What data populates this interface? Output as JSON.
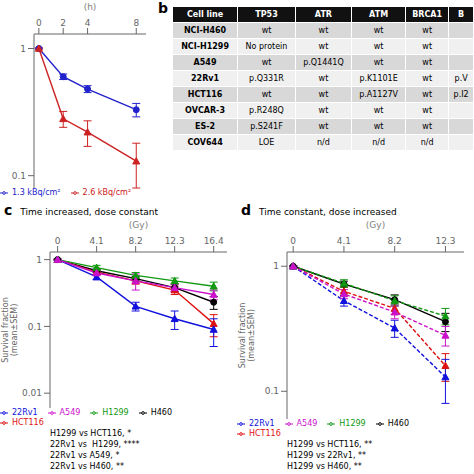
{
  "chart_data": [
    {
      "type": "line",
      "x": [
        0,
        2,
        4,
        8
      ],
      "xlabel": "(h)",
      "xlim": [
        -0.4,
        8.8
      ],
      "xticks": [
        0,
        2,
        4,
        8
      ],
      "ylim": [
        0.08,
        1.3
      ],
      "yticks": [
        0.1,
        1
      ],
      "log": "y",
      "legend": "lower left",
      "series": [
        {
          "name": "1.3 kBq/cm²",
          "color": "#2222cc",
          "marker": "circle",
          "line_style": "solid",
          "values": [
            1.0,
            0.6,
            0.48,
            0.33
          ],
          "errors": [
            0.01,
            0.03,
            0.03,
            0.04
          ]
        },
        {
          "name": "2.6 kBq/cm²",
          "color": "#cc2222",
          "marker": "triangle",
          "line_style": "solid",
          "values": [
            1.0,
            0.28,
            0.22,
            0.13
          ],
          "errors": [
            0.01,
            0.04,
            0.05,
            0.05
          ]
        }
      ]
    },
    {
      "type": "table",
      "annotations": [
        "b"
      ],
      "columns": [
        "Cell line",
        "TP53",
        "ATR",
        "ATM",
        "BRCA1",
        "B"
      ],
      "rows": [
        [
          "NCI-H460",
          "wt",
          "wt",
          "wt",
          "wt",
          null
        ],
        [
          "NCI-H1299",
          "No protein",
          "wt",
          "wt",
          "wt",
          null
        ],
        [
          "A549",
          "wt",
          "p.Q1441Q",
          "wt",
          "wt",
          null
        ],
        [
          "22Rv1",
          "p.Q331R",
          "wt",
          "p.K1101E",
          "wt",
          "p.V"
        ],
        [
          "HCT116",
          "wt",
          "wt",
          "p.A1127V",
          "wt",
          "p.I2"
        ],
        [
          "OVCAR-3",
          "p.R248Q",
          "wt",
          "wt",
          "wt",
          null
        ],
        [
          "ES-2",
          "p.S241F",
          "wt",
          "wt",
          "wt",
          null
        ],
        [
          "COV644",
          "LOE",
          "n/d",
          "n/d",
          "n/d",
          null
        ]
      ]
    },
    {
      "type": "line",
      "title": "Time increased, dose constant",
      "annotations": [
        "c",
        "H1299 vs HCT116, *",
        "22Rv1 vs  H1299, ****",
        "22Rv1 vs A549, *",
        "22Rv1 vs H460, **"
      ],
      "x": [
        0,
        4.1,
        8.2,
        12.3,
        16.4
      ],
      "xlabel": "(Gy)",
      "ylabel": "Survival fraction\n(mean±SEM)",
      "xlim": [
        -0.8,
        17.8
      ],
      "xticks": [
        0,
        4.1,
        8.2,
        12.3,
        16.4
      ],
      "ylim": [
        0.006,
        1.3
      ],
      "yticks": [
        0.01,
        0.1,
        1
      ],
      "log": "y",
      "legend": "lower left",
      "series": [
        {
          "name": "H460",
          "color": "#000000",
          "marker": "circle",
          "line_style": "solid",
          "values": [
            1.0,
            0.68,
            0.52,
            0.38,
            0.23
          ],
          "errors": [
            0.01,
            0.04,
            0.04,
            0.05,
            0.05
          ]
        },
        {
          "name": "HCT116",
          "color": "#dd1111",
          "marker": "triangle",
          "line_style": "solid",
          "values": [
            1.0,
            0.65,
            0.48,
            0.35,
            0.11
          ],
          "errors": [
            0.01,
            0.05,
            0.05,
            0.05,
            0.04
          ]
        },
        {
          "name": "22Rv1",
          "color": "#1111dd",
          "marker": "triangle",
          "line_style": "solid",
          "values": [
            1.0,
            0.55,
            0.2,
            0.13,
            0.09
          ],
          "errors": [
            0.01,
            0.05,
            0.03,
            0.04,
            0.04
          ]
        },
        {
          "name": "H1299",
          "color": "#119911",
          "marker": "triangle",
          "line_style": "solid",
          "values": [
            1.0,
            0.76,
            0.58,
            0.48,
            0.4
          ],
          "errors": [
            0.01,
            0.06,
            0.06,
            0.05,
            0.06
          ]
        },
        {
          "name": "A549",
          "color": "#cc11cc",
          "marker": "triangle",
          "line_style": "solid",
          "values": [
            1.0,
            0.63,
            0.48,
            0.38,
            0.3
          ],
          "errors": [
            0.01,
            0.04,
            0.13,
            0.05,
            0.05
          ]
        }
      ]
    },
    {
      "type": "line",
      "title": "Time constant, dose increased",
      "annotations": [
        "d",
        "H1299 vs HCT116, **",
        "H1299 vs 22Rv1, **",
        "H1299 vs H460, **"
      ],
      "x": [
        0,
        4.1,
        8.2,
        12.3
      ],
      "xlabel": "(Gy)",
      "ylabel": "Survival fraction\n(mean±SEM)",
      "xlim": [
        -0.5,
        13.8
      ],
      "xticks": [
        0,
        4.1,
        8.2,
        12.3
      ],
      "ylim": [
        0.06,
        1.3
      ],
      "yticks": [
        0.1,
        1
      ],
      "log": "y",
      "legend": "lower left",
      "series": [
        {
          "name": "H460",
          "color": "#000000",
          "marker": "circle",
          "line_style": "solid",
          "values": [
            1.0,
            0.72,
            0.54,
            0.36
          ],
          "errors": [
            0.01,
            0.04,
            0.05,
            0.06
          ]
        },
        {
          "name": "HCT116",
          "color": "#dd1111",
          "marker": "triangle",
          "line_style": "dashed",
          "values": [
            1.0,
            0.63,
            0.46,
            0.16
          ],
          "errors": [
            0.01,
            0.05,
            0.05,
            0.04
          ]
        },
        {
          "name": "22Rv1",
          "color": "#1111dd",
          "marker": "triangle",
          "line_style": "dashed",
          "values": [
            1.0,
            0.53,
            0.32,
            0.13
          ],
          "errors": [
            0.01,
            0.05,
            0.05,
            0.05
          ]
        },
        {
          "name": "H1299",
          "color": "#119911",
          "marker": "triangle",
          "line_style": "dashed",
          "values": [
            1.0,
            0.73,
            0.53,
            0.4
          ],
          "errors": [
            0.01,
            0.05,
            0.05,
            0.06
          ]
        },
        {
          "name": "A549",
          "color": "#cc11cc",
          "marker": "triangle",
          "line_style": "dashed",
          "values": [
            1.0,
            0.6,
            0.43,
            0.28
          ],
          "errors": [
            0.01,
            0.05,
            0.05,
            0.05
          ]
        }
      ]
    }
  ]
}
